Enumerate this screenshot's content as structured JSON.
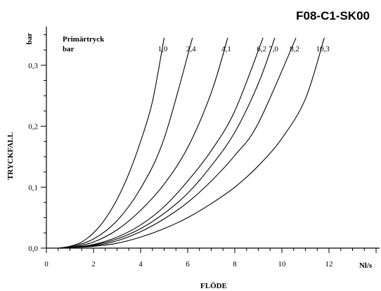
{
  "chart_data": {
    "type": "line",
    "title": "F08-C1-SK00",
    "xlabel": "FLÖDE",
    "x_unit": "Nl/s",
    "ylabel": "TRYCKFALL",
    "y_unit": "bar",
    "xlim": [
      0,
      14
    ],
    "ylim": [
      0,
      0.35
    ],
    "x_ticks": [
      "0",
      "2",
      "4",
      "6",
      "8",
      "10",
      "12"
    ],
    "y_ticks": [
      "0,0",
      "0,1",
      "0,2",
      "0,3"
    ],
    "legend_title": [
      "Primärtryck",
      "bar"
    ],
    "grid": false,
    "series": [
      {
        "name": "1,0",
        "x": [
          0.5,
          1.0,
          1.5,
          2.0,
          2.5,
          3.0,
          3.5,
          4.0,
          4.5,
          5.0
        ],
        "y": [
          0,
          0.003,
          0.01,
          0.025,
          0.048,
          0.08,
          0.122,
          0.175,
          0.24,
          0.345
        ]
      },
      {
        "name": "2,4",
        "x": [
          0.5,
          1.0,
          2.0,
          3.0,
          4.0,
          5.0,
          6.2
        ],
        "y": [
          0,
          0.002,
          0.015,
          0.045,
          0.098,
          0.18,
          0.345
        ]
      },
      {
        "name": "4,1",
        "x": [
          0.5,
          1.0,
          2.0,
          3.0,
          4.0,
          5.0,
          6.0,
          7.0,
          7.7
        ],
        "y": [
          0,
          0.001,
          0.01,
          0.03,
          0.062,
          0.105,
          0.165,
          0.255,
          0.345
        ]
      },
      {
        "name": "6,2",
        "x": [
          0.5,
          1.0,
          2.0,
          3.0,
          4.0,
          5.0,
          6.0,
          7.0,
          8.0,
          9.2
        ],
        "y": [
          0,
          0.001,
          0.006,
          0.018,
          0.038,
          0.068,
          0.11,
          0.16,
          0.225,
          0.345
        ]
      },
      {
        "name": "7,0",
        "x": [
          0.5,
          1.0,
          2.0,
          3.0,
          4.0,
          5.0,
          6.0,
          7.0,
          8.0,
          9.0,
          9.7
        ],
        "y": [
          0,
          0.001,
          0.005,
          0.015,
          0.032,
          0.057,
          0.09,
          0.135,
          0.19,
          0.27,
          0.345
        ]
      },
      {
        "name": "8,2",
        "x": [
          0.5,
          1.0,
          2.0,
          3.0,
          4.0,
          5.0,
          6.0,
          7.0,
          8.0,
          9.0,
          10.6
        ],
        "y": [
          0,
          0.001,
          0.004,
          0.012,
          0.027,
          0.048,
          0.075,
          0.11,
          0.152,
          0.205,
          0.345
        ]
      },
      {
        "name": "10,3",
        "x": [
          0.5,
          1.0,
          2.0,
          3.0,
          4.0,
          5.0,
          6.0,
          7.0,
          8.0,
          9.0,
          10.0,
          11.0,
          11.8
        ],
        "y": [
          0,
          0.001,
          0.003,
          0.008,
          0.018,
          0.032,
          0.05,
          0.073,
          0.1,
          0.135,
          0.18,
          0.245,
          0.345
        ]
      }
    ]
  }
}
